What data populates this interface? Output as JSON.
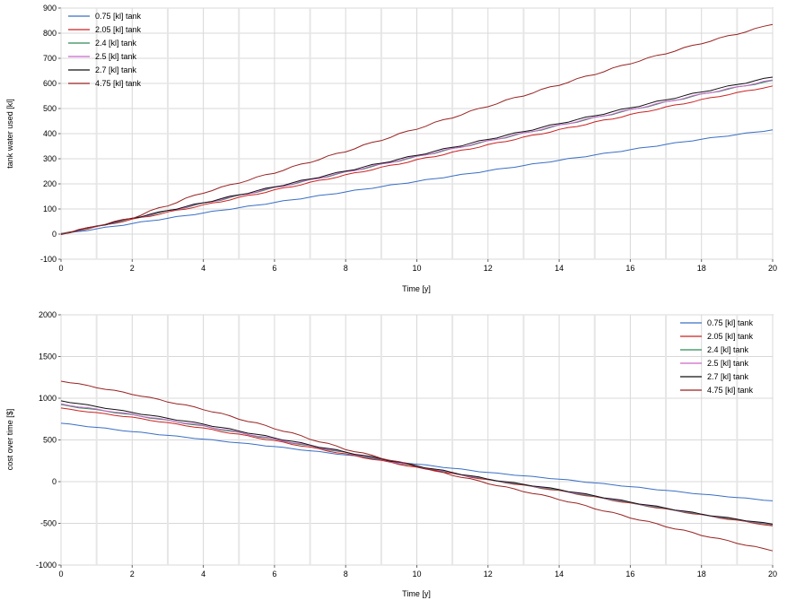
{
  "chart_data": [
    {
      "type": "line",
      "ylabel": "tank water used [kl]",
      "xlabel": "Time [y]",
      "xlim": [
        0,
        20
      ],
      "ylim": [
        -100,
        900
      ],
      "xticks": [
        "0",
        "2",
        "4",
        "6",
        "8",
        "10",
        "12",
        "14",
        "16",
        "18",
        "20"
      ],
      "yticks": [
        "-100",
        "0",
        "100",
        "200",
        "300",
        "400",
        "500",
        "600",
        "700",
        "800",
        "900"
      ],
      "grid": true,
      "legend_position": "top-left",
      "x": [
        0,
        2,
        4,
        6,
        8,
        10,
        12,
        14,
        16,
        18,
        20
      ],
      "series": [
        {
          "name": "0.75 [kl] tank",
          "color": "#3a6fc4",
          "values": [
            0,
            42,
            84,
            126,
            168,
            210,
            252,
            294,
            336,
            378,
            415
          ]
        },
        {
          "name": "2.05 [kl] tank",
          "color": "#cc2222",
          "values": [
            0,
            58,
            115,
            175,
            235,
            295,
            355,
            415,
            475,
            535,
            590
          ]
        },
        {
          "name": "2.4 [kl] tank",
          "color": "#2e8b57",
          "values": [
            0,
            61,
            122,
            184,
            246,
            308,
            370,
            432,
            494,
            556,
            612
          ]
        },
        {
          "name": "2.5 [kl] tank",
          "color": "#cc66cc",
          "values": [
            0,
            62,
            123,
            185,
            247,
            309,
            371,
            433,
            495,
            557,
            614
          ]
        },
        {
          "name": "2.7 [kl] tank",
          "color": "#111111",
          "values": [
            0,
            63,
            125,
            188,
            251,
            314,
            377,
            440,
            503,
            566,
            625
          ]
        },
        {
          "name": "4.75 [kl] tank",
          "color": "#992222",
          "values": [
            0,
            65,
            165,
            245,
            330,
            420,
            510,
            595,
            680,
            760,
            835
          ]
        }
      ]
    },
    {
      "type": "line",
      "ylabel": "cost over time [$]",
      "xlabel": "Time [y]",
      "xlim": [
        0,
        20
      ],
      "ylim": [
        -1000,
        2000
      ],
      "xticks": [
        "0",
        "2",
        "4",
        "6",
        "8",
        "10",
        "12",
        "14",
        "16",
        "18",
        "20"
      ],
      "yticks": [
        "-1000",
        "-500",
        "0",
        "500",
        "1000",
        "1500",
        "2000"
      ],
      "grid": true,
      "legend_position": "top-right",
      "x": [
        0,
        2,
        4,
        6,
        8,
        10,
        12,
        14,
        16,
        18,
        20
      ],
      "series": [
        {
          "name": "0.75 [kl] tank",
          "color": "#3a6fc4",
          "values": [
            700,
            600,
            510,
            420,
            320,
            210,
            110,
            30,
            -60,
            -150,
            -230
          ]
        },
        {
          "name": "2.05 [kl] tank",
          "color": "#cc2222",
          "values": [
            880,
            770,
            640,
            490,
            330,
            170,
            20,
            -110,
            -260,
            -400,
            -530
          ]
        },
        {
          "name": "2.4 [kl] tank",
          "color": "#2e8b57",
          "values": [
            920,
            800,
            665,
            505,
            345,
            180,
            25,
            -105,
            -255,
            -395,
            -520
          ]
        },
        {
          "name": "2.5 [kl] tank",
          "color": "#cc66cc",
          "values": [
            930,
            805,
            670,
            510,
            350,
            182,
            28,
            -100,
            -250,
            -392,
            -515
          ]
        },
        {
          "name": "2.7 [kl] tank",
          "color": "#111111",
          "values": [
            970,
            830,
            690,
            525,
            355,
            190,
            30,
            -95,
            -245,
            -390,
            -510
          ]
        },
        {
          "name": "4.75 [kl] tank",
          "color": "#992222",
          "values": [
            1210,
            1050,
            870,
            640,
            390,
            180,
            -20,
            -210,
            -430,
            -640,
            -830
          ]
        }
      ]
    }
  ]
}
